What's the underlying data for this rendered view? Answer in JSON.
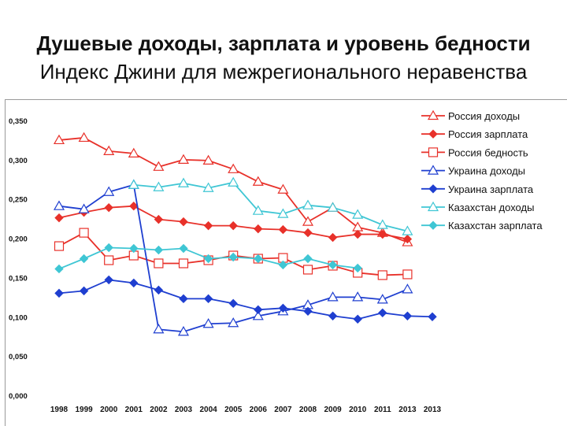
{
  "title": "Душевые доходы, зарплата и уровень бедности",
  "subtitle": "Индекс Джини для межрегионального неравенства",
  "chart_data": {
    "type": "line",
    "categories": [
      "1998",
      "1999",
      "2000",
      "2001",
      "2002",
      "2003",
      "2004",
      "2005",
      "2006",
      "2007",
      "2008",
      "2009",
      "2010",
      "2011",
      "2013",
      "2013"
    ],
    "y_ticks": [
      "0,000",
      "0,050",
      "0,100",
      "0,150",
      "0,200",
      "0,250",
      "0,300",
      "0,350"
    ],
    "ylim": [
      0,
      0.35
    ],
    "grid": false,
    "legend_position": "top-right",
    "series": [
      {
        "name": "Россия доходы",
        "color": "#e8312a",
        "marker": "triangle-open",
        "values": [
          0.325,
          0.328,
          0.311,
          0.308,
          0.291,
          0.3,
          0.299,
          0.288,
          0.272,
          0.262,
          0.221,
          0.239,
          0.214,
          0.207,
          0.195,
          null
        ]
      },
      {
        "name": "Россия зарплата",
        "color": "#e8312a",
        "marker": "diamond-filled",
        "values": [
          0.226,
          0.233,
          0.239,
          0.241,
          0.224,
          0.221,
          0.216,
          0.216,
          0.212,
          0.211,
          0.207,
          0.201,
          0.205,
          0.205,
          0.199,
          null
        ]
      },
      {
        "name": "Россия бедность",
        "color": "#e8312a",
        "marker": "square-open",
        "values": [
          0.19,
          0.207,
          0.172,
          0.178,
          0.168,
          0.168,
          0.172,
          0.178,
          0.174,
          0.175,
          0.16,
          0.165,
          0.156,
          0.153,
          0.154,
          null
        ]
      },
      {
        "name": "Украина доходы",
        "color": "#1f3fd0",
        "marker": "triangle-open",
        "values": [
          0.241,
          0.237,
          0.259,
          0.268,
          0.084,
          0.081,
          0.091,
          0.092,
          0.101,
          0.107,
          0.115,
          0.125,
          0.125,
          0.122,
          0.135,
          null
        ]
      },
      {
        "name": "Украина зарплата",
        "color": "#1f3fd0",
        "marker": "diamond-filled",
        "values": [
          0.13,
          0.133,
          0.147,
          0.143,
          0.134,
          0.123,
          0.123,
          0.117,
          0.109,
          0.111,
          0.107,
          0.101,
          0.097,
          0.105,
          0.101,
          0.1
        ]
      },
      {
        "name": "Казахстан доходы",
        "color": "#3fc6d4",
        "marker": "triangle-open",
        "values": [
          null,
          null,
          null,
          0.268,
          0.265,
          0.27,
          0.264,
          0.271,
          0.235,
          0.231,
          0.242,
          0.239,
          0.23,
          0.217,
          0.209,
          null
        ]
      },
      {
        "name": "Казахстан зарплата",
        "color": "#3fc6d4",
        "marker": "diamond-filled",
        "values": [
          0.161,
          0.174,
          0.188,
          0.187,
          0.185,
          0.187,
          0.174,
          0.176,
          0.174,
          0.166,
          0.174,
          0.166,
          0.162,
          null,
          null,
          null
        ]
      }
    ]
  }
}
